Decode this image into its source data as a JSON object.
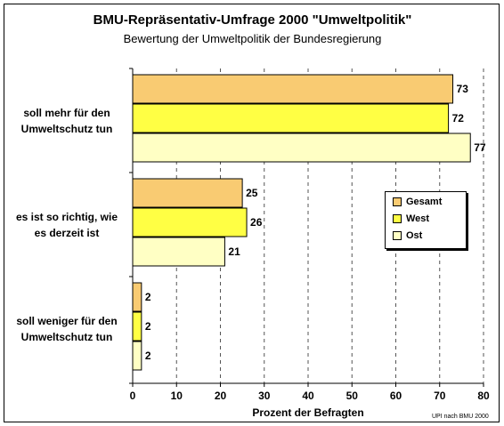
{
  "chart_data": {
    "type": "bar",
    "orientation": "horizontal",
    "title": "BMU-Repräsentativ-Umfrage 2000 \"Umweltpolitik\"",
    "subtitle": "Bewertung der Umweltpolitik der Bundesregierung",
    "categories": [
      [
        "soll mehr für den",
        "Umweltschutz tun"
      ],
      [
        "es ist so richtig, wie",
        "es derzeit ist"
      ],
      [
        "soll weniger für den",
        "Umweltschutz tun"
      ]
    ],
    "series": [
      {
        "name": "Gesamt",
        "values": [
          73,
          25,
          2
        ],
        "labels": [
          "73",
          "25",
          "2"
        ],
        "color": "#F9CB72"
      },
      {
        "name": "West",
        "values": [
          72,
          26,
          2
        ],
        "labels": [
          "72",
          "26",
          "2"
        ],
        "color": "#FFFF44"
      },
      {
        "name": "Ost",
        "values": [
          77,
          21,
          2
        ],
        "labels": [
          "77",
          "21",
          "2"
        ],
        "color": "#FFFFC4"
      }
    ],
    "xlabel": "Prozent der Befragten",
    "xlim": [
      0,
      80
    ],
    "xticks": [
      "0",
      "10",
      "20",
      "30",
      "40",
      "50",
      "60",
      "70",
      "80"
    ],
    "grid": "vertical-dashed",
    "legend_position": "right-middle",
    "source": "UPI nach BMU 2000"
  }
}
